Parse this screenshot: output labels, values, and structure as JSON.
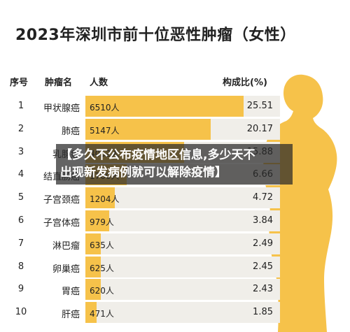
{
  "header": {
    "title": "2023年深圳市前十位恶性肿瘤（女性）",
    "col_rank": "序号",
    "col_name": "肿瘤名",
    "col_count": "人数",
    "col_ratio": "构成比(%)"
  },
  "overlay": {
    "line1": "【多久不公布疫情地区信息,多少天不",
    "line2": "出现新发病例就可以解除疫情】"
  },
  "colors": {
    "bar": "#f6c24a",
    "track": "#f0eee9",
    "figure": "#f6c24a"
  },
  "chart_data": {
    "type": "bar",
    "orientation": "horizontal",
    "title": "2023年深圳市前十位恶性肿瘤（女性）",
    "count_unit": "人",
    "max_scale": 8000,
    "rows": [
      {
        "rank": "1",
        "name": "甲状腺癌",
        "count": 6510,
        "count_label": "6510人",
        "ratio": "25.51"
      },
      {
        "rank": "2",
        "name": "肺癌",
        "count": 5147,
        "count_label": "5147人",
        "ratio": "20.17"
      },
      {
        "rank": "3",
        "name": "乳腺癌",
        "count": 4052,
        "count_label": "4052人",
        "ratio": "15.88"
      },
      {
        "rank": "4",
        "name": "结直肠癌",
        "count": 1700,
        "count_label": "1700人",
        "ratio": "6.66"
      },
      {
        "rank": "5",
        "name": "子宫颈癌",
        "count": 1204,
        "count_label": "1204人",
        "ratio": "4.72"
      },
      {
        "rank": "6",
        "name": "子宫体癌",
        "count": 979,
        "count_label": "979人",
        "ratio": "3.84"
      },
      {
        "rank": "7",
        "name": "淋巴瘤",
        "count": 635,
        "count_label": "635人",
        "ratio": "2.49"
      },
      {
        "rank": "8",
        "name": "卵巢癌",
        "count": 625,
        "count_label": "625人",
        "ratio": "2.45"
      },
      {
        "rank": "9",
        "name": "胃癌",
        "count": 620,
        "count_label": "620人",
        "ratio": "2.43"
      },
      {
        "rank": "10",
        "name": "肝癌",
        "count": 471,
        "count_label": "471人",
        "ratio": "1.85"
      }
    ]
  }
}
